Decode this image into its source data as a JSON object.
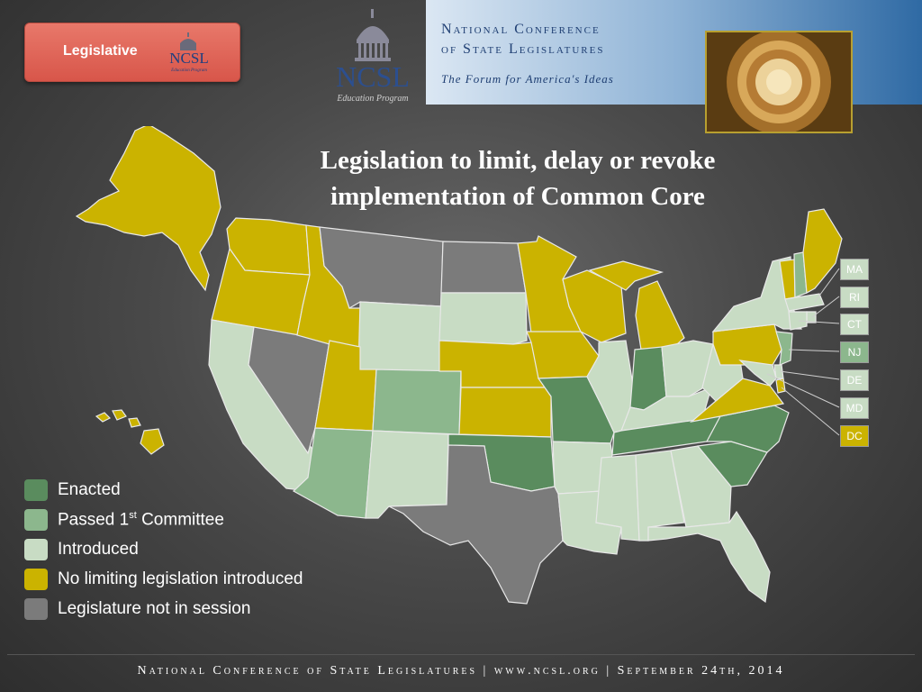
{
  "header": {
    "badge_label": "Legislative",
    "badge_logo_text": "NCSL",
    "badge_logo_subtext": "Education Program",
    "center_logo_text": "NCSL",
    "center_logo_subtext": "Education Program",
    "banner_line1": "National Conference",
    "banner_line2": "of State Legislatures",
    "banner_tagline": "The Forum for America's Ideas"
  },
  "title_line1": "Legislation to limit, delay or revoke",
  "title_line2": "implementation of Common Core",
  "colors": {
    "enacted": "#5a8c5e",
    "passed_1st_committee": "#8cb78d",
    "introduced": "#c8dcc4",
    "no_limiting": "#cbb300",
    "not_in_session": "#7b7b7b"
  },
  "legend": {
    "enacted": "Enacted",
    "passed_prefix": "Passed 1",
    "passed_sup": "st",
    "passed_suffix": " Committee",
    "introduced": "Introduced",
    "no_limiting": "No limiting legislation introduced",
    "not_in_session": "Legislature not in session"
  },
  "callouts": {
    "MA": "MA",
    "RI": "RI",
    "CT": "CT",
    "NJ": "NJ",
    "DE": "DE",
    "MD": "MD",
    "DC": "DC"
  },
  "state_status": {
    "AK": "no_limiting",
    "HI": "no_limiting",
    "WA": "no_limiting",
    "OR": "no_limiting",
    "ID": "no_limiting",
    "UT": "no_limiting",
    "MN": "no_limiting",
    "WI": "no_limiting",
    "MI": "no_limiting",
    "IA": "no_limiting",
    "NE": "no_limiting",
    "KS": "no_limiting",
    "PA": "no_limiting",
    "VA": "no_limiting",
    "VT": "no_limiting",
    "ME": "no_limiting",
    "DC": "no_limiting",
    "IN": "enacted",
    "MO": "enacted",
    "OK": "enacted",
    "TN": "enacted",
    "NC": "enacted",
    "SC": "enacted",
    "CO": "passed_1st_committee",
    "AZ": "passed_1st_committee",
    "NH": "passed_1st_committee",
    "NJ": "passed_1st_committee",
    "CA": "introduced",
    "WY": "introduced",
    "SD": "introduced",
    "NM": "introduced",
    "IL": "introduced",
    "OH": "introduced",
    "KY": "introduced",
    "WV": "introduced",
    "NY": "introduced",
    "AR": "introduced",
    "LA": "introduced",
    "MS": "introduced",
    "AL": "introduced",
    "GA": "introduced",
    "FL": "introduced",
    "MA": "introduced",
    "RI": "introduced",
    "CT": "introduced",
    "DE": "introduced",
    "MD": "introduced",
    "NV": "not_in_session",
    "MT": "not_in_session",
    "ND": "not_in_session",
    "TX": "not_in_session"
  },
  "footer": "National Conference of State Legislatures | www.ncsl.org | September 24th, 2014"
}
